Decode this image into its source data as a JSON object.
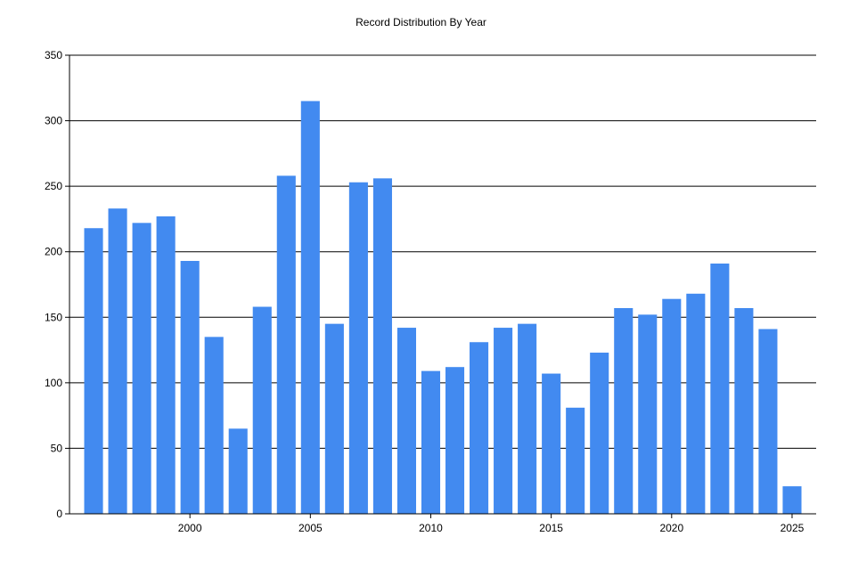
{
  "chart_data": {
    "type": "bar",
    "title": "Record Distribution By Year",
    "xlabel": "",
    "ylabel": "",
    "x": [
      1996,
      1997,
      1998,
      1999,
      2000,
      2001,
      2002,
      2003,
      2004,
      2005,
      2006,
      2007,
      2008,
      2009,
      2010,
      2011,
      2012,
      2013,
      2014,
      2015,
      2016,
      2017,
      2018,
      2019,
      2020,
      2021,
      2022,
      2023,
      2024,
      2025
    ],
    "values": [
      218,
      233,
      222,
      227,
      193,
      135,
      65,
      158,
      258,
      315,
      145,
      253,
      256,
      142,
      109,
      112,
      131,
      142,
      145,
      107,
      81,
      123,
      157,
      152,
      164,
      168,
      191,
      157,
      141,
      21
    ],
    "ylim": [
      0,
      350
    ],
    "yticks": [
      0,
      50,
      100,
      150,
      200,
      250,
      300,
      350
    ],
    "xticks": [
      2000,
      2005,
      2010,
      2015,
      2020,
      2025
    ],
    "xlim": [
      1995,
      2026
    ],
    "grid": "horizontal",
    "bar_color": "#428AF0"
  }
}
